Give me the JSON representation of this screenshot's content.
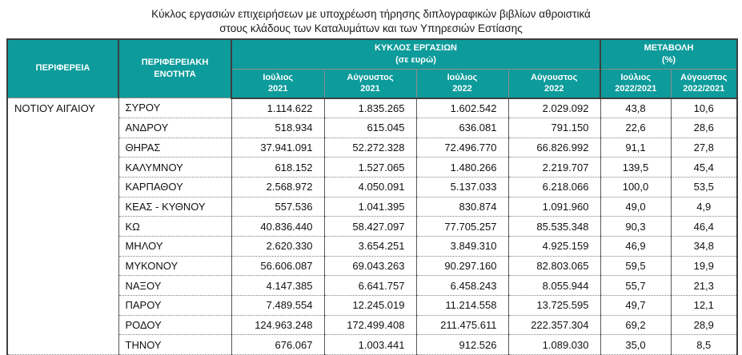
{
  "title": "Κύκλος εργασιών επιχειρήσεων με υποχρέωση τήρησης διπλογραφικών βιβλίων αθροιστικά\nστους κλάδους των Καταλυμάτων και των Υπηρεσιών Εστίασης",
  "colors": {
    "header_background": "#0d9b9b",
    "header_text": "#ffffff",
    "border_dark": "#3f3f3f",
    "body_text": "#111111"
  },
  "table": {
    "header": {
      "region": "ΠΕΡΙΦΕΡΕΙΑ",
      "regional_unit": "ΠΕΡΙΦΕΡΕΙΑΚΗ\nΕΝΟΤΗΤΑ",
      "turnover_group": "ΚΥΚΛΟΣ ΕΡΓΑΣΙΩΝ\n(σε ευρώ)",
      "change_group": "ΜΕΤΑΒΟΛΗ\n(%)",
      "turnover_cols": [
        "Ιούλιος\n2021",
        "Αύγουστος\n2021",
        "Ιούλιος\n2022",
        "Αύγουστος\n2022"
      ],
      "change_cols": [
        "Ιούλιος\n2022/2021",
        "Αύγουστος\n2022/2021"
      ]
    },
    "region_value": "ΝΟΤΙΟΥ ΑΙΓΑΙΟΥ",
    "rows": [
      {
        "unit": "ΣΥΡΟΥ",
        "turnover": [
          "1.114.622",
          "1.835.265",
          "1.602.542",
          "2.029.092"
        ],
        "change": [
          "43,8",
          "10,6"
        ]
      },
      {
        "unit": "ΑΝΔΡΟΥ",
        "turnover": [
          "518.934",
          "615.045",
          "636.081",
          "791.150"
        ],
        "change": [
          "22,6",
          "28,6"
        ]
      },
      {
        "unit": "ΘΗΡΑΣ",
        "turnover": [
          "37.941.091",
          "52.272.328",
          "72.496.770",
          "66.826.992"
        ],
        "change": [
          "91,1",
          "27,8"
        ]
      },
      {
        "unit": "ΚΑΛΥΜΝΟΥ",
        "turnover": [
          "618.152",
          "1.527.065",
          "1.480.266",
          "2.219.707"
        ],
        "change": [
          "139,5",
          "45,4"
        ]
      },
      {
        "unit": "ΚΑΡΠΑΘΟΥ",
        "turnover": [
          "2.568.972",
          "4.050.091",
          "5.137.033",
          "6.218.066"
        ],
        "change": [
          "100,0",
          "53,5"
        ]
      },
      {
        "unit": "ΚΕΑΣ - ΚΥΘΝΟΥ",
        "turnover": [
          "557.536",
          "1.041.395",
          "830.874",
          "1.091.960"
        ],
        "change": [
          "49,0",
          "4,9"
        ]
      },
      {
        "unit": "ΚΩ",
        "turnover": [
          "40.836.440",
          "58.427.097",
          "77.705.257",
          "85.535.348"
        ],
        "change": [
          "90,3",
          "46,4"
        ]
      },
      {
        "unit": "ΜΗΛΟΥ",
        "turnover": [
          "2.620.330",
          "3.654.251",
          "3.849.310",
          "4.925.159"
        ],
        "change": [
          "46,9",
          "34,8"
        ]
      },
      {
        "unit": "ΜΥΚΟΝΟΥ",
        "turnover": [
          "56.606.087",
          "69.043.263",
          "90.297.160",
          "82.803.065"
        ],
        "change": [
          "59,5",
          "19,9"
        ]
      },
      {
        "unit": "ΝΑΞΟΥ",
        "turnover": [
          "4.147.385",
          "6.641.757",
          "6.458.243",
          "8.055.944"
        ],
        "change": [
          "55,7",
          "21,3"
        ]
      },
      {
        "unit": "ΠΑΡΟΥ",
        "turnover": [
          "7.489.554",
          "12.245.019",
          "11.214.558",
          "13.725.595"
        ],
        "change": [
          "49,7",
          "12,1"
        ]
      },
      {
        "unit": "ΡΟΔΟΥ",
        "turnover": [
          "124.963.248",
          "172.499.408",
          "211.475.611",
          "222.357.304"
        ],
        "change": [
          "69,2",
          "28,9"
        ]
      },
      {
        "unit": "ΤΗΝΟΥ",
        "turnover": [
          "676.067",
          "1.003.441",
          "912.526",
          "1.089.030"
        ],
        "change": [
          "35,0",
          "8,5"
        ]
      }
    ]
  }
}
